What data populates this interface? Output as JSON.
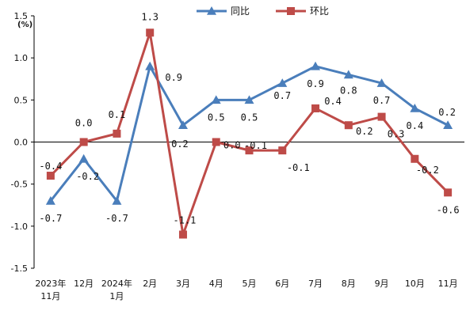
{
  "chart_data": {
    "type": "line",
    "title": "",
    "unit_label": "(%)",
    "xlabel": "",
    "ylabel": "",
    "ylim": [
      -1.5,
      1.5
    ],
    "y_ticks": [
      "1.5",
      "1.0",
      "0.5",
      "0.0",
      "-0.5",
      "-1.0",
      "-1.5"
    ],
    "y_tick_values": [
      1.5,
      1.0,
      0.5,
      0.0,
      -0.5,
      -1.0,
      -1.5
    ],
    "categories": [
      [
        "2023年",
        "11月"
      ],
      [
        "12月"
      ],
      [
        "2024年",
        "1月"
      ],
      [
        "2月"
      ],
      [
        "3月"
      ],
      [
        "4月"
      ],
      [
        "5月"
      ],
      [
        "6月"
      ],
      [
        "7月"
      ],
      [
        "8月"
      ],
      [
        "9月"
      ],
      [
        "10月"
      ],
      [
        "11月"
      ]
    ],
    "legend_position": "top-center",
    "grid": false,
    "series": [
      {
        "name": "同比",
        "color": "#4a7ebb",
        "marker": "triangle",
        "values": [
          -0.7,
          -0.2,
          -0.7,
          0.9,
          0.2,
          0.5,
          0.5,
          0.7,
          0.9,
          0.8,
          0.7,
          0.4,
          0.2
        ],
        "labels": [
          "-0.7",
          "-0.2",
          "-0.7",
          "0.9",
          "0.2",
          "0.5",
          "0.5",
          "0.7",
          "0.9",
          "0.8",
          "0.7",
          "0.4",
          "0.2"
        ]
      },
      {
        "name": "环比",
        "color": "#be4b48",
        "marker": "square",
        "values": [
          -0.4,
          0.0,
          0.1,
          1.3,
          -1.1,
          0.0,
          -0.1,
          -0.1,
          0.4,
          0.2,
          0.3,
          -0.2,
          -0.6
        ],
        "labels": [
          "-0.4",
          "0.0",
          "0.1",
          "1.3",
          "-1.1",
          "0.0",
          "-0.1",
          "-0.1",
          "0.4",
          "0.2",
          "0.3",
          "-0.2",
          "-0.6"
        ]
      }
    ]
  }
}
